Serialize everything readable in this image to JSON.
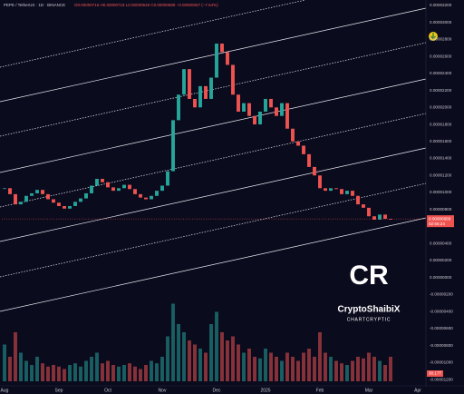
{
  "chart_data": {
    "type": "candlestick",
    "header": "PEPE / TetherUS · 1D · BINANCE",
    "ohlc_text": "O0.00000716 H0.00000718 L0.00000649 C0.00000689 −0.00000057 (−7.64%)",
    "values": [
      1.05e-05,
      9.8e-06,
      8.6e-06,
      8.9e-06,
      9.6e-06,
      9.9e-06,
      1.03e-05,
      9.8e-06,
      9.2e-06,
      8.8e-06,
      8.4e-06,
      8.1e-06,
      8.4e-06,
      8.9e-06,
      9.3e-06,
      9.9e-06,
      1.08e-05,
      1.16e-05,
      1.12e-05,
      1.06e-05,
      1.02e-05,
      1.05e-05,
      1.09e-05,
      1.04e-05,
      9.8e-06,
      9.4e-06,
      9.2e-06,
      9.6e-06,
      1.02e-05,
      1.08e-05,
      1.25e-05,
      1.85e-05,
      2.15e-05,
      2.45e-05,
      2.1e-05,
      2e-05,
      2.25e-05,
      2.1e-05,
      2.35e-05,
      2.75e-05,
      2.65e-05,
      2.5e-05,
      2.15e-05,
      1.95e-05,
      2.05e-05,
      1.9e-05,
      1.8e-05,
      1.95e-05,
      2.1e-05,
      2e-05,
      1.9e-05,
      2.05e-05,
      1.75e-05,
      1.6e-05,
      1.55e-05,
      1.45e-05,
      1.3e-05,
      1.2e-05,
      1.05e-05,
      1.02e-05,
      1.05e-05,
      1.04e-05,
      9.8e-06,
      1.02e-05,
      9.6e-06,
      8.6e-06,
      8.2e-06,
      7.2e-06,
      6.8e-06,
      7.4e-06,
      6.9e-06,
      6.89e-06
    ],
    "volume": [
      45,
      30,
      60,
      35,
      25,
      20,
      30,
      22,
      18,
      20,
      18,
      15,
      20,
      22,
      18,
      25,
      30,
      35,
      22,
      25,
      20,
      18,
      20,
      22,
      18,
      15,
      20,
      25,
      22,
      30,
      55,
      95,
      70,
      60,
      50,
      45,
      40,
      35,
      70,
      85,
      60,
      50,
      55,
      45,
      35,
      40,
      30,
      28,
      40,
      35,
      30,
      25,
      35,
      30,
      25,
      35,
      40,
      30,
      60,
      35,
      30,
      25,
      22,
      20,
      25,
      30,
      28,
      35,
      30,
      25,
      20,
      30
    ],
    "volume_lim": [
      0,
      100
    ],
    "volume_label": "30.17T",
    "up_color": "#26a69a",
    "down_color": "#ef5350",
    "xlim": [
      -0.5,
      77.5
    ],
    "xticks": [
      {
        "value": 0,
        "label": "Aug"
      },
      {
        "value": 10,
        "label": "Sep"
      },
      {
        "value": 19,
        "label": "Oct"
      },
      {
        "value": 29,
        "label": "Nov"
      },
      {
        "value": 39,
        "label": "Dec"
      },
      {
        "value": 48,
        "label": "2025"
      },
      {
        "value": 58,
        "label": "Feb"
      },
      {
        "value": 67,
        "label": "Mar"
      },
      {
        "value": 76,
        "label": "Apr"
      }
    ],
    "ylim": [
      -1.22e-05,
      3.22e-05
    ],
    "yticks": [
      {
        "value": 3.2e-05,
        "label": "0.00003200"
      },
      {
        "value": 3e-05,
        "label": "0.00003000"
      },
      {
        "value": 2.8e-05,
        "label": "0.00002800"
      },
      {
        "value": 2.6e-05,
        "label": "0.00002600"
      },
      {
        "value": 2.4e-05,
        "label": "0.00002400"
      },
      {
        "value": 2.2e-05,
        "label": "0.00002200"
      },
      {
        "value": 2e-05,
        "label": "0.00002000"
      },
      {
        "value": 1.8e-05,
        "label": "0.00001800"
      },
      {
        "value": 1.6e-05,
        "label": "0.00001600"
      },
      {
        "value": 1.4e-05,
        "label": "0.00001400"
      },
      {
        "value": 1.2e-05,
        "label": "0.00001200"
      },
      {
        "value": 1e-05,
        "label": "0.00001000"
      },
      {
        "value": 8e-06,
        "label": "0.00000800"
      },
      {
        "value": 4e-06,
        "label": "0.00000400"
      },
      {
        "value": 2e-06,
        "label": "0.00000200"
      },
      {
        "value": 0,
        "label": "0.00000000"
      },
      {
        "value": -2e-06,
        "label": "-0.00000200"
      },
      {
        "value": -4e-06,
        "label": "-0.00000400"
      },
      {
        "value": -6e-06,
        "label": "-0.00000600"
      },
      {
        "value": -8e-06,
        "label": "-0.00000800"
      },
      {
        "value": -1e-05,
        "label": "-0.00001000"
      },
      {
        "value": -1.2e-05,
        "label": "-0.00001200"
      }
    ],
    "grid": false,
    "last_price": {
      "value": 6.89e-06,
      "label": "0.00000689"
    },
    "countdown": "02:56:24",
    "logo": {
      "mark": "CR",
      "name": "CryptoShaibiX",
      "tagline": "CHARTCRYPTIC"
    }
  }
}
